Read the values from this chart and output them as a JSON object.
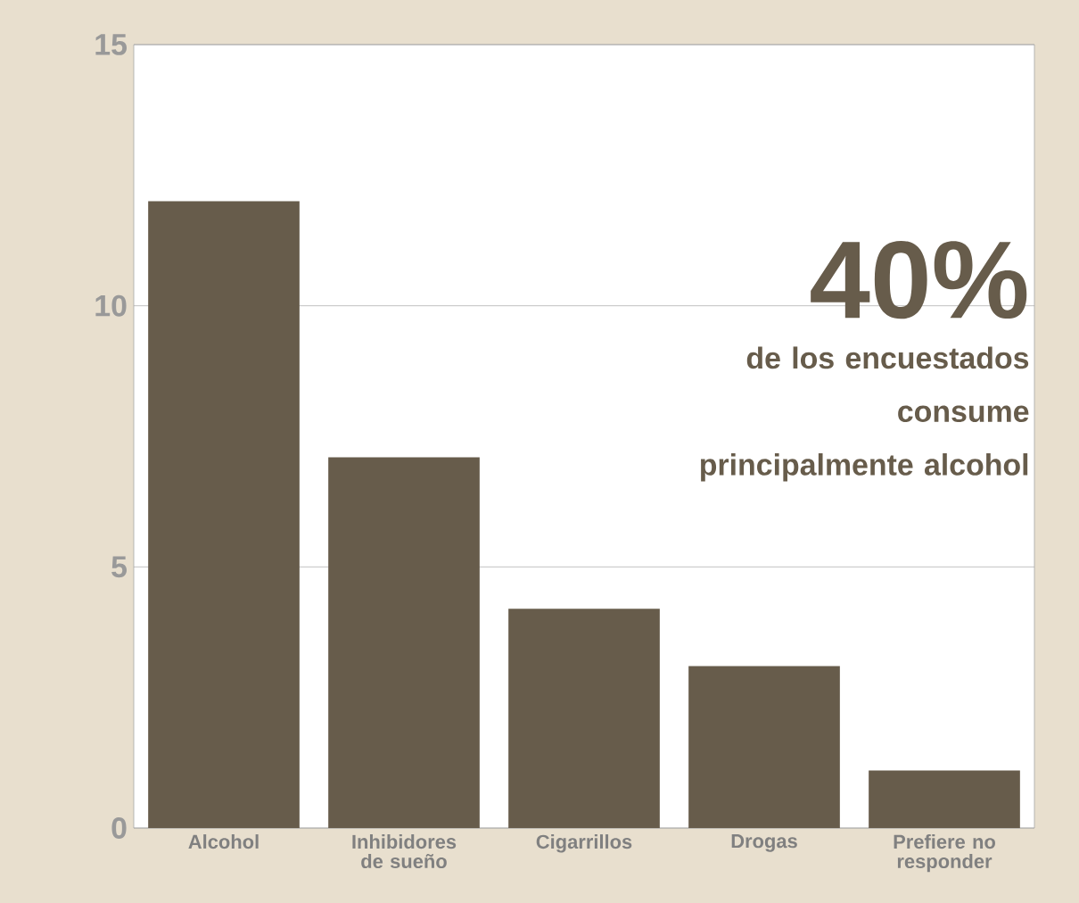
{
  "chart_data": {
    "type": "bar",
    "categories": [
      "Alcohol",
      "Inhibidores de sueño",
      "Cigarrillos",
      "Drogas",
      "Prefiere no responder"
    ],
    "values": [
      12,
      7.1,
      4.2,
      3.1,
      1.1
    ],
    "color": "#675c4b",
    "ylim": [
      0,
      15
    ],
    "yticks": [
      0,
      5,
      10,
      15
    ],
    "grid": "y",
    "annotations": [
      "**40%**",
      "de los encuestados consume principalmente alcohol"
    ]
  }
}
